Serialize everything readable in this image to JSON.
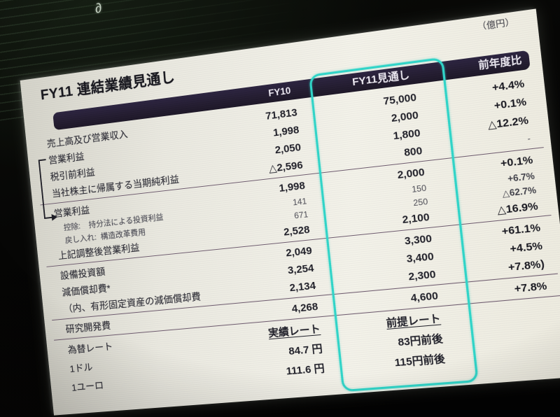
{
  "photo": {
    "handwritten_mark": "∂"
  },
  "slide": {
    "title": "FY11 連結業績見通し",
    "unit_note": "（億円）",
    "columns": {
      "fy10": "FY10",
      "fy11": "FY11見通し",
      "yoy": "前年度比"
    },
    "colors": {
      "highlight_box": "#30d6c9",
      "header_bar": "#241d31",
      "divider": "#6d5a6d"
    },
    "table": {
      "rows": [
        {
          "label": "売上高及び営業収入",
          "fy10": "71,813",
          "fy11": "75,000",
          "yoy": "+4.4%"
        },
        {
          "label": "営業利益",
          "fy10": "1,998",
          "fy11": "2,000",
          "yoy": "+0.1%"
        },
        {
          "label": "税引前利益",
          "fy10": "2,050",
          "fy11": "1,800",
          "yoy": "△12.2%"
        },
        {
          "label": "当社株主に帰属する当期純利益",
          "fy10": "△2,596",
          "fy11": "800",
          "yoy": "-",
          "yoy_small": true,
          "divider_after": true
        },
        {
          "label": "営業利益",
          "fy10": "1,998",
          "fy11": "2,000",
          "yoy": "+0.1%"
        },
        {
          "label": "控除:    持分法による投資利益",
          "fy10": "141",
          "fy11": "150",
          "yoy": "+6.7%",
          "small": true
        },
        {
          "label": "戻し入れ:  構造改革費用",
          "fy10": "671",
          "fy11": "250",
          "yoy": "△62.7%",
          "small": true
        },
        {
          "label": "上記調整後営業利益",
          "fy10": "2,528",
          "fy11": "2,100",
          "yoy": "△16.9%",
          "divider_after": true
        },
        {
          "label": "設備投資額",
          "fy10": "2,049",
          "fy11": "3,300",
          "yoy": "+61.1%"
        },
        {
          "label": "減価償却費*",
          "fy10": "3,254",
          "fy11": "3,400",
          "yoy": "+4.5%"
        },
        {
          "label": "（内、有形固定資産の減価償却費",
          "fy10": "2,134",
          "fy11": "2,300",
          "yoy": "+7.8%)",
          "divider_after": true
        },
        {
          "label": "研究開発費",
          "fy10": "4,268",
          "fy11": "4,600",
          "yoy": "+7.8%",
          "divider_after": true
        },
        {
          "label": "為替レート",
          "fy10": "実績レート",
          "fy11": "前提レート",
          "yoy": "",
          "fx": true,
          "underline": true
        },
        {
          "label": "1ドル",
          "fy10": "84.7 円",
          "fy11": "83円前後",
          "yoy": "",
          "fx": true
        },
        {
          "label": "1ユーロ",
          "fy10": "111.6 円",
          "fy11": "115円前後",
          "yoy": "",
          "fx": true
        }
      ]
    }
  }
}
